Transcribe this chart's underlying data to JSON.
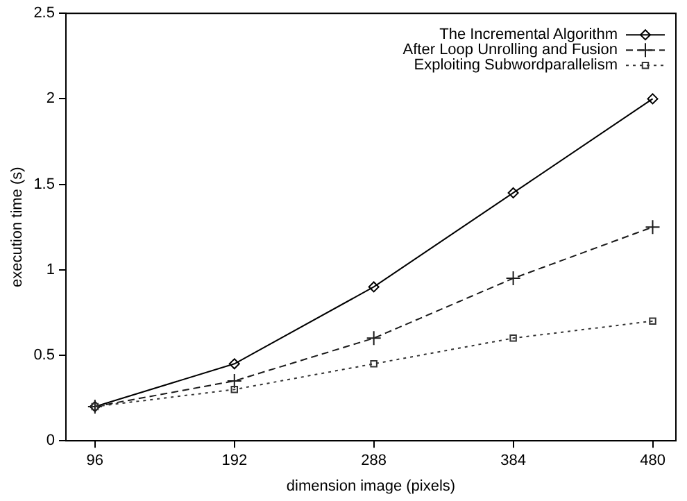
{
  "chart_data": {
    "type": "line",
    "xlabel": "dimension image (pixels)",
    "ylabel": "execution time (s)",
    "x": [
      96,
      192,
      288,
      384,
      480
    ],
    "xlim": [
      76,
      496
    ],
    "xticks": [
      96,
      192,
      288,
      384,
      480
    ],
    "ylim": [
      0,
      2.5
    ],
    "yticks": [
      0,
      0.5,
      1,
      1.5,
      2,
      2.5
    ],
    "grid": false,
    "legend": "top right",
    "series": [
      {
        "name": "The Incremental Algorithm",
        "color": "#000000",
        "values": [
          0.2,
          0.45,
          0.9,
          1.45,
          2.0
        ],
        "marker": "diamond",
        "line_style": "solid"
      },
      {
        "name": "After Loop Unrolling and Fusion",
        "color": "#1a1a1a",
        "values": [
          0.2,
          0.35,
          0.6,
          0.95,
          1.25
        ],
        "marker": "cross",
        "line_style": "dashed"
      },
      {
        "name": "Exploiting Subwordparallelism",
        "color": "#333333",
        "values": [
          0.2,
          0.3,
          0.45,
          0.6,
          0.7
        ],
        "marker": "square",
        "line_style": "dotted"
      }
    ]
  }
}
